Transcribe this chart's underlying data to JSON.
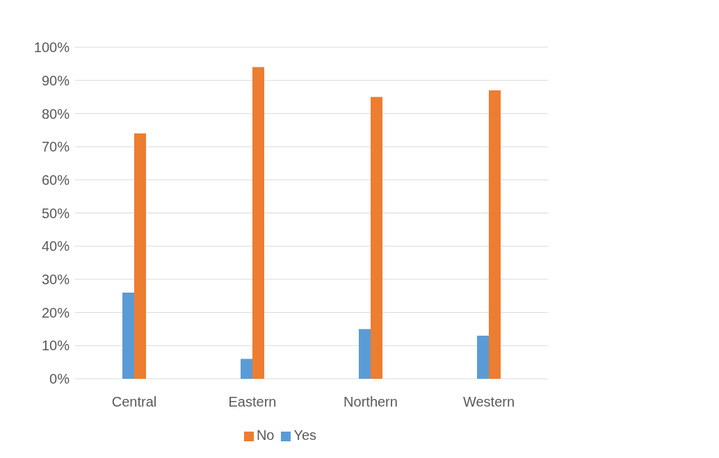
{
  "chart_data": {
    "type": "bar",
    "categories": [
      "Central",
      "Eastern",
      "Northern",
      "Western"
    ],
    "series": [
      {
        "name": "Yes",
        "color": "#5b9bd5",
        "values": [
          26,
          6,
          15,
          13
        ]
      },
      {
        "name": "No",
        "color": "#ed7d31",
        "values": [
          74,
          94,
          85,
          87
        ]
      }
    ],
    "ylim": [
      0,
      100
    ],
    "yticks": [
      {
        "value": 0,
        "label": "0%"
      },
      {
        "value": 10,
        "label": "10%"
      },
      {
        "value": 20,
        "label": "20%"
      },
      {
        "value": 30,
        "label": "30%"
      },
      {
        "value": 40,
        "label": "40%"
      },
      {
        "value": 50,
        "label": "50%"
      },
      {
        "value": 60,
        "label": "60%"
      },
      {
        "value": 70,
        "label": "70%"
      },
      {
        "value": 80,
        "label": "80%"
      },
      {
        "value": 90,
        "label": "90%"
      },
      {
        "value": 100,
        "label": "100%"
      }
    ],
    "grid": "y",
    "legend": "bottom"
  }
}
